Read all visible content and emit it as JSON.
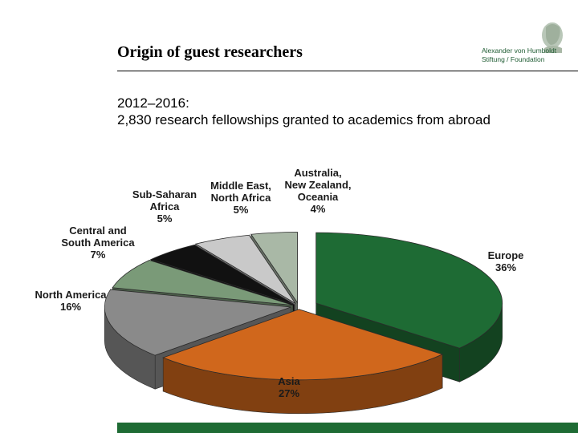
{
  "header": {
    "title": "Origin of guest researchers",
    "logo_line1": "Alexander von Humboldt",
    "logo_line2": "Stiftung / Foundation"
  },
  "subtitle": {
    "line1": "2012–2016:",
    "line2": "2,830 research fellowships granted to academics from abroad"
  },
  "chart_data": {
    "type": "pie",
    "style": "3d exploded",
    "slices": [
      {
        "label_lines": [
          "Europe",
          "36%"
        ],
        "value": 36,
        "color": "#1e6b34"
      },
      {
        "label_lines": [
          "Asia",
          "27%"
        ],
        "value": 27,
        "color": "#d0671c"
      },
      {
        "label_lines": [
          "North America",
          "16%"
        ],
        "value": 16,
        "color": "#8a8a8a"
      },
      {
        "label_lines": [
          "Central and",
          "South America",
          "7%"
        ],
        "value": 7,
        "color": "#7a9a78"
      },
      {
        "label_lines": [
          "Sub-Saharan",
          "Africa",
          "5%"
        ],
        "value": 5,
        "color": "#111111"
      },
      {
        "label_lines": [
          "Middle East,",
          "North Africa",
          "5%"
        ],
        "value": 5,
        "color": "#c9c9c9"
      },
      {
        "label_lines": [
          "Australia,",
          "New Zealand,",
          "Oceania",
          "4%"
        ],
        "value": 4,
        "color": "#a9b8a6"
      }
    ]
  },
  "footer": {
    "bar_color": "#1e6b34"
  }
}
